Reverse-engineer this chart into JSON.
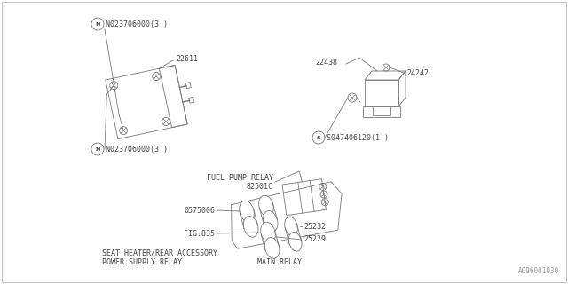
{
  "bg_color": "#ffffff",
  "line_color": "#777777",
  "text_color": "#444444",
  "fig_width": 6.4,
  "fig_height": 3.2,
  "watermark": "A096001030",
  "top_label1": "N023706000(3 )",
  "top_label2": "N023706000(3 )",
  "part_22611": "22611",
  "part_22438": "22438",
  "part_24242": "24242",
  "screw_label": "S047406120(1 )",
  "fuel_relay_label": "FUEL PUMP RELAY",
  "fuel_relay_num": "82501C",
  "part_0575006": "0575006",
  "part_25232": "25232",
  "fig835": "FIG.835",
  "part_25229": "25229",
  "bottom1": "SEAT HEATER/REAR ACCESSORY",
  "bottom2": "POWER SUPPLY RELAY",
  "bottom3": "MAIN RELAY"
}
